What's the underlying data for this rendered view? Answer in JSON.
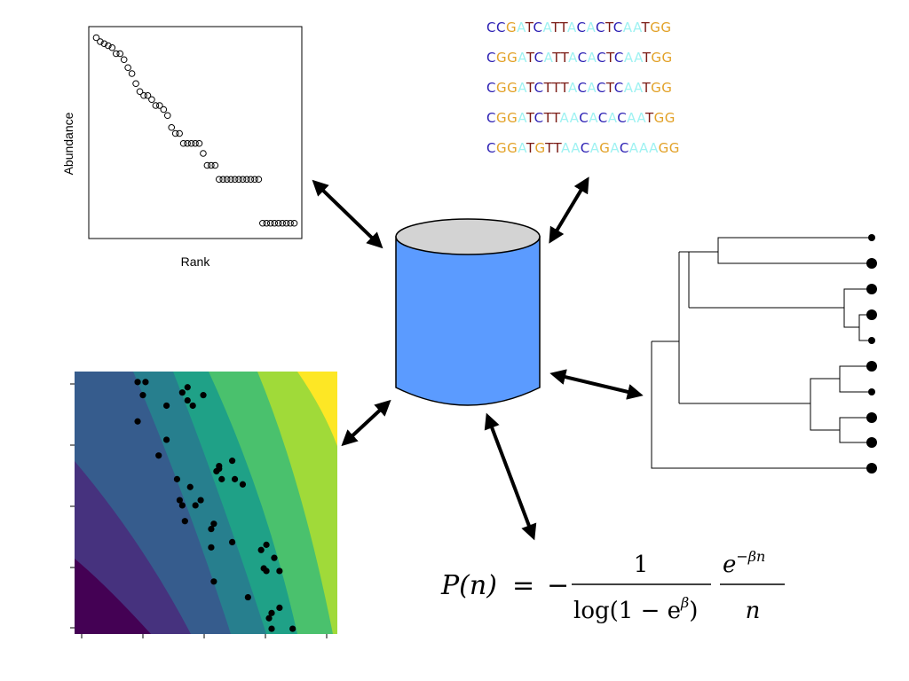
{
  "rank_abundance": {
    "xlabel": "Rank",
    "ylabel": "Abundance",
    "chart_data": {
      "type": "scatter",
      "title": "",
      "xlabel": "Rank",
      "ylabel": "Abundance",
      "x": [
        1,
        2,
        3,
        4,
        5,
        6,
        7,
        8,
        9,
        10,
        11,
        12,
        13,
        14,
        15,
        16,
        17,
        18,
        19,
        20,
        21,
        22,
        23,
        24,
        25,
        26,
        27,
        28,
        29,
        30,
        31,
        32,
        33,
        34,
        35,
        36,
        37,
        38,
        39,
        40,
        41,
        42,
        43,
        44,
        45,
        46,
        47,
        48,
        49,
        50,
        51
      ],
      "y": [
        98,
        96,
        95,
        94,
        93,
        90,
        90,
        87,
        83,
        80,
        75,
        71,
        69,
        69,
        67,
        64,
        64,
        62,
        59,
        53,
        50,
        50,
        45,
        45,
        45,
        45,
        45,
        40,
        34,
        34,
        34,
        27,
        27,
        27,
        27,
        27,
        27,
        27,
        27,
        27,
        27,
        27,
        5,
        5,
        5,
        5,
        5,
        5,
        5,
        5,
        5
      ],
      "xlim": [
        0,
        52
      ],
      "ylim": [
        0,
        100
      ],
      "grid": false
    }
  },
  "dna": {
    "colors": {
      "C": "#2a1eb3",
      "G": "#e2a127",
      "A": "#9ff2f2",
      "T": "#7a1a14"
    },
    "sequences": [
      "CCGATCATTACACTCAATGG",
      "CGGATCATTACACTCAATGG",
      "CGGATCTTTACACTCAATGG",
      "CGGATCTTAACACACAATGG",
      "CGGATGTTAACAGACAAAGG"
    ]
  },
  "database": {
    "icon": "database-cylinder-icon",
    "body_color": "#5b9bff",
    "top_color": "#d3d3d3"
  },
  "tree": {
    "newick": "((L1,L2),(L3,(L4,L5)),(((L6,L7),(L8,L9))),L10)",
    "tip_sizes": [
      "small",
      "large",
      "large",
      "large",
      "small",
      "large",
      "small",
      "large",
      "large",
      "large"
    ]
  },
  "contour": {
    "colors": [
      "#440154",
      "#46327e",
      "#365c8d",
      "#277f8e",
      "#1fa187",
      "#4ac16d",
      "#a0da39",
      "#fde725"
    ],
    "chart_data": {
      "type": "scatter",
      "title": "",
      "xlabel": "",
      "ylabel": "",
      "x": [
        0.24,
        0.27,
        0.26,
        0.24,
        0.35,
        0.41,
        0.43,
        0.43,
        0.45,
        0.49,
        0.35,
        0.32,
        0.55,
        0.6,
        0.55,
        0.54,
        0.56,
        0.61,
        0.64,
        0.39,
        0.44,
        0.4,
        0.41,
        0.46,
        0.48,
        0.42,
        0.53,
        0.52,
        0.6,
        0.73,
        0.71,
        0.76,
        0.72,
        0.73,
        0.52,
        0.78,
        0.53,
        0.66,
        0.78,
        0.75,
        0.74,
        0.75,
        0.83
      ],
      "y": [
        0.96,
        0.96,
        0.91,
        0.81,
        0.87,
        0.92,
        0.89,
        0.94,
        0.87,
        0.91,
        0.74,
        0.68,
        0.64,
        0.66,
        0.63,
        0.62,
        0.59,
        0.59,
        0.57,
        0.59,
        0.56,
        0.51,
        0.49,
        0.49,
        0.51,
        0.43,
        0.42,
        0.4,
        0.35,
        0.34,
        0.32,
        0.29,
        0.25,
        0.24,
        0.33,
        0.24,
        0.2,
        0.14,
        0.1,
        0.08,
        0.06,
        0.02,
        0.02
      ],
      "xlim": [
        0,
        1
      ],
      "ylim": [
        0,
        1
      ]
    }
  },
  "formula": {
    "lhs": "P(n)",
    "equals": "=",
    "minus": "−",
    "num1": "1",
    "den1_log": "log(1 − e",
    "den1_exp": "β",
    "den1_close": ")",
    "num2_base": "e",
    "num2_exp": "−βn",
    "den2": "n"
  }
}
